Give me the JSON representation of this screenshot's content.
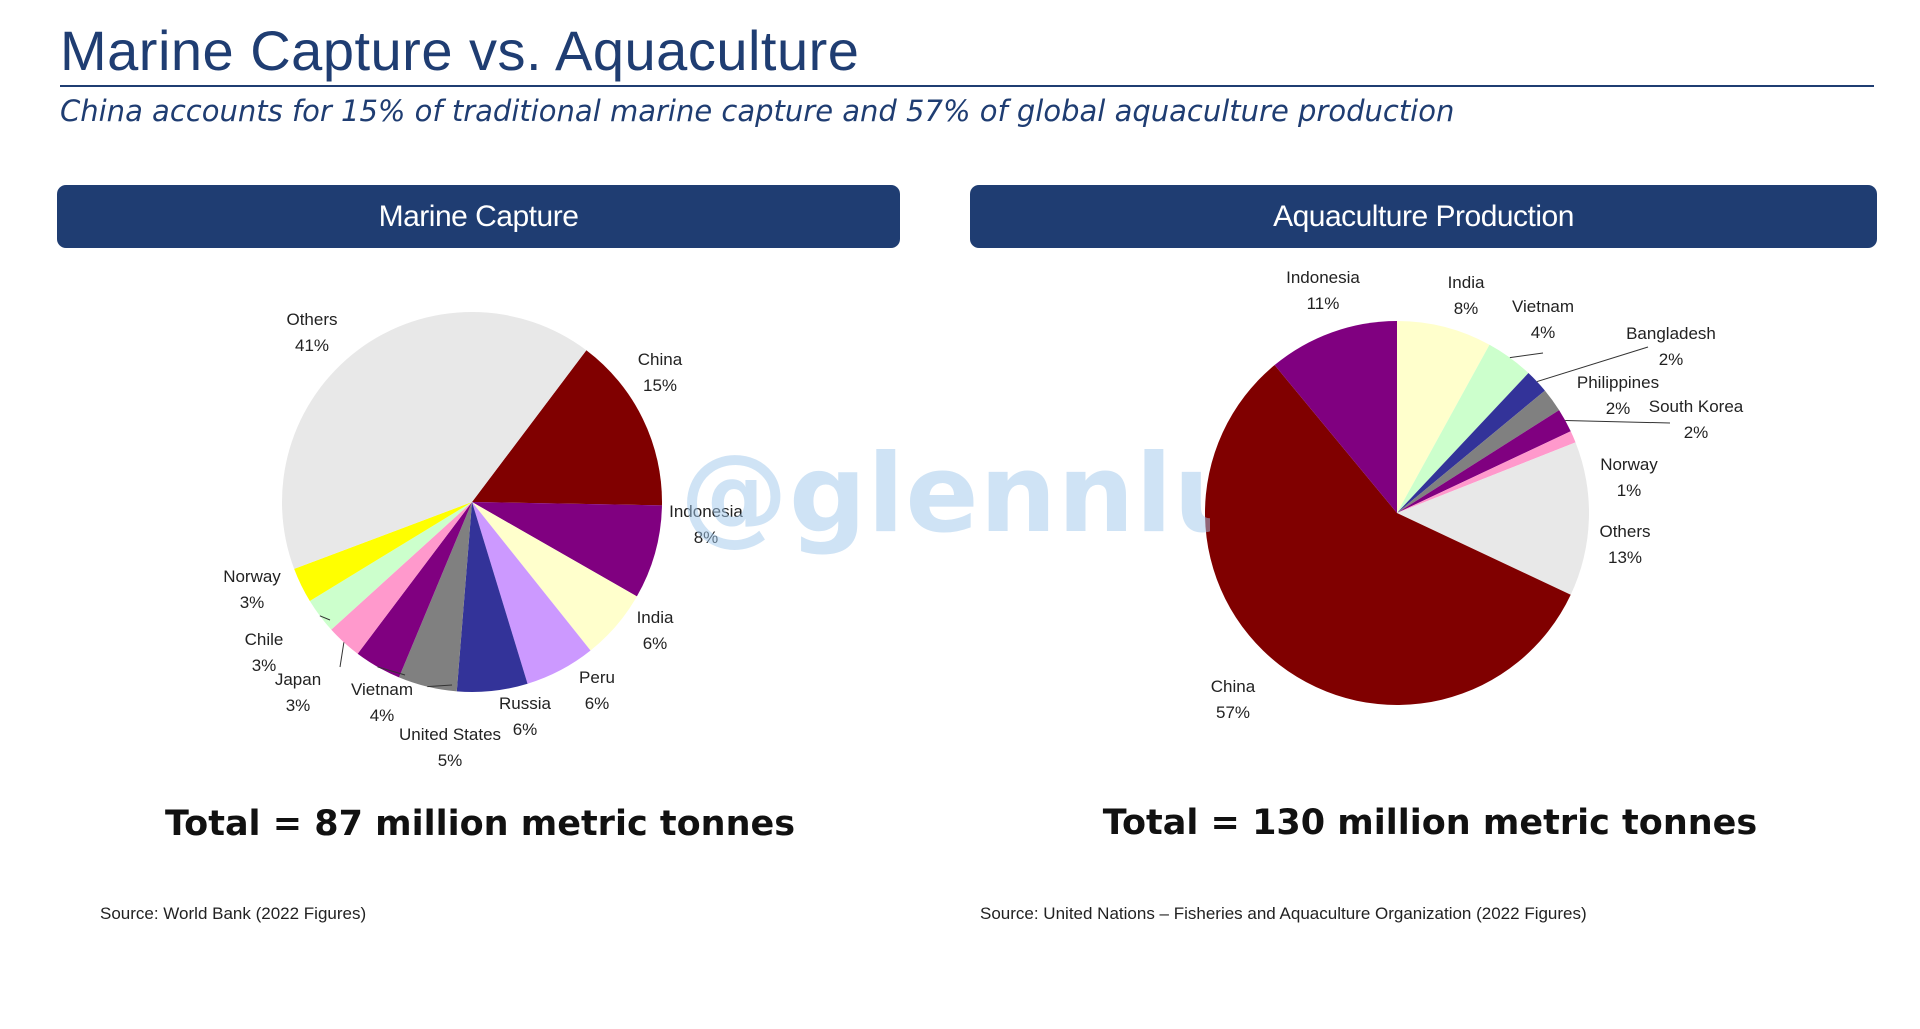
{
  "header": {
    "title": "Marine Capture vs. Aquaculture",
    "subtitle": "China accounts for 15% of traditional marine capture and 57% of global aquaculture production"
  },
  "watermark": "@glennluk",
  "panels": [
    {
      "header": "Marine Capture",
      "total": "Total = 87 million metric tonnes",
      "source": "Source: World Bank (2022 Figures)"
    },
    {
      "header": "Aquaculture Production",
      "total": "Total = 130 million metric tonnes",
      "source": "Source: United Nations – Fisheries and Aquaculture Organization (2022 Figures)"
    }
  ],
  "chart_data": [
    {
      "type": "pie",
      "title": "Marine Capture",
      "total_label": "Total = 87 million metric tonnes",
      "start_angle_deg": 37,
      "slices": [
        {
          "name": "China",
          "label": "China",
          "value": 15,
          "pct": "15%",
          "color": "#800000"
        },
        {
          "name": "Indonesia",
          "label": "Indonesia",
          "value": 8,
          "pct": "8%",
          "color": "#800080"
        },
        {
          "name": "India",
          "label": "India",
          "value": 6,
          "pct": "6%",
          "color": "#ffffcc"
        },
        {
          "name": "Peru",
          "label": "Peru",
          "value": 6,
          "pct": "6%",
          "color": "#cc99ff"
        },
        {
          "name": "Russia",
          "label": "Russia",
          "value": 6,
          "pct": "6%",
          "color": "#333399"
        },
        {
          "name": "United States",
          "label": "United States",
          "value": 5,
          "pct": "5%",
          "color": "#808080"
        },
        {
          "name": "Vietnam",
          "label": "Vietnam",
          "value": 4,
          "pct": "4%",
          "color": "#800080"
        },
        {
          "name": "Japan",
          "label": "Japan",
          "value": 3,
          "pct": "3%",
          "color": "#ff99cc"
        },
        {
          "name": "Chile",
          "label": "Chile",
          "value": 3,
          "pct": "3%",
          "color": "#ccffcc"
        },
        {
          "name": "Norway",
          "label": "Norway",
          "value": 3,
          "pct": "3%",
          "color": "#ffff00"
        },
        {
          "name": "Others",
          "label": "Others",
          "value": 41,
          "pct": "41%",
          "color": "#e8e8e8"
        }
      ]
    },
    {
      "type": "pie",
      "title": "Aquaculture Production",
      "total_label": "Total = 130 million metric tonnes",
      "start_angle_deg": 0,
      "slices": [
        {
          "name": "India",
          "label": "India",
          "value": 8,
          "pct": "8%",
          "color": "#ffffcc"
        },
        {
          "name": "Vietnam",
          "label": "Vietnam",
          "value": 4,
          "pct": "4%",
          "color": "#ccffcc"
        },
        {
          "name": "Bangladesh",
          "label": "Bangladesh",
          "value": 2,
          "pct": "2%",
          "color": "#333399"
        },
        {
          "name": "Philippines",
          "label": "Philippines",
          "value": 2,
          "pct": "2%",
          "color": "#808080"
        },
        {
          "name": "South Korea",
          "label": "South Korea",
          "value": 2,
          "pct": "2%",
          "color": "#800080"
        },
        {
          "name": "Norway",
          "label": "Norway",
          "value": 1,
          "pct": "1%",
          "color": "#ff99cc"
        },
        {
          "name": "Others",
          "label": "Others",
          "value": 13,
          "pct": "13%",
          "color": "#e8e8e8"
        },
        {
          "name": "China",
          "label": "China",
          "value": 57,
          "pct": "57%",
          "color": "#800000"
        },
        {
          "name": "Indonesia",
          "label": "Indonesia",
          "value": 11,
          "pct": "11%",
          "color": "#800080"
        }
      ]
    }
  ]
}
